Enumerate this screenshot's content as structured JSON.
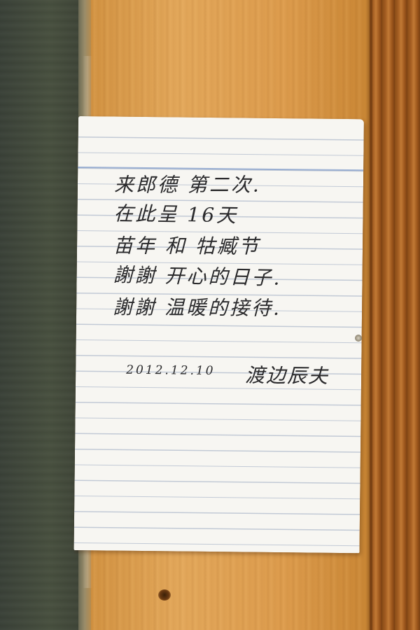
{
  "note": {
    "lines": [
      "来郎德 第二次.",
      "在此呈 16天",
      "苗年 和 牯臧节",
      "謝謝 开心的日子.",
      "謝謝 温暖的接待."
    ],
    "date": "2012.12.10",
    "signature": "渡边辰夫"
  },
  "colors": {
    "paper": "#f7f6f2",
    "ink": "#2a2a2c",
    "rule_lines": "#96a5be",
    "wood": "#d99a4c",
    "dark_panel": "#48503f"
  }
}
